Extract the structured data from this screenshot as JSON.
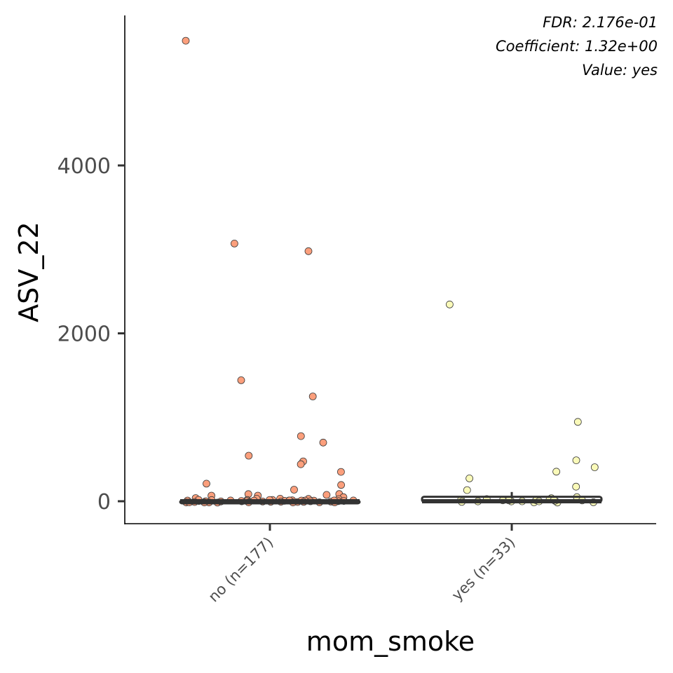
{
  "chart_data": {
    "type": "box",
    "title": "",
    "xlabel": "mom_smoke",
    "ylabel": "ASV_22",
    "ylim": [
      -270,
      5720
    ],
    "yticks": [
      0,
      2000,
      4000
    ],
    "ytick_labels": [
      "0",
      "2000",
      "4000"
    ],
    "grid": false,
    "legend": "none",
    "annotations": [
      "FDR: 2.176e-01",
      "Coefficient: 1.32e+00",
      "Value: yes"
    ],
    "categories": [
      "no (n=177)",
      "yes (n=33)"
    ],
    "colors": {
      "no (n=177)": "#fc9f7c",
      "yes (n=33)": "#fafab9"
    },
    "boxes": [
      {
        "category": "no (n=177)",
        "q1": 0,
        "median": 0,
        "q3": 0,
        "whisker_low": 0,
        "whisker_high": 0
      },
      {
        "category": "yes (n=33)",
        "q1": 0,
        "median": 0,
        "q3": 45,
        "whisker_low": 0,
        "whisker_high": 110
      }
    ],
    "points": [
      {
        "category": "no (n=177)",
        "values": [
          5500,
          3060,
          2980,
          1450,
          1250,
          780,
          690,
          550,
          460,
          440,
          360,
          210,
          200,
          140,
          100,
          80,
          70,
          60,
          60,
          50,
          40,
          30,
          30,
          20,
          10,
          10,
          5,
          5,
          0,
          0,
          0,
          0,
          0,
          0,
          0,
          0,
          0,
          0,
          0,
          0,
          0,
          0,
          0,
          0,
          0,
          0,
          0,
          0,
          0,
          0,
          0,
          0,
          0,
          0,
          0,
          0,
          0,
          0,
          0,
          0,
          0,
          0,
          0,
          0,
          0,
          0,
          0,
          0,
          0,
          0
        ]
      },
      {
        "category": "yes (n=33)",
        "values": [
          2350,
          930,
          500,
          420,
          350,
          280,
          170,
          130,
          50,
          30,
          30,
          20,
          10,
          5,
          0,
          0,
          0,
          0,
          0,
          0,
          0,
          0,
          0,
          0,
          0,
          0,
          0
        ]
      }
    ]
  }
}
